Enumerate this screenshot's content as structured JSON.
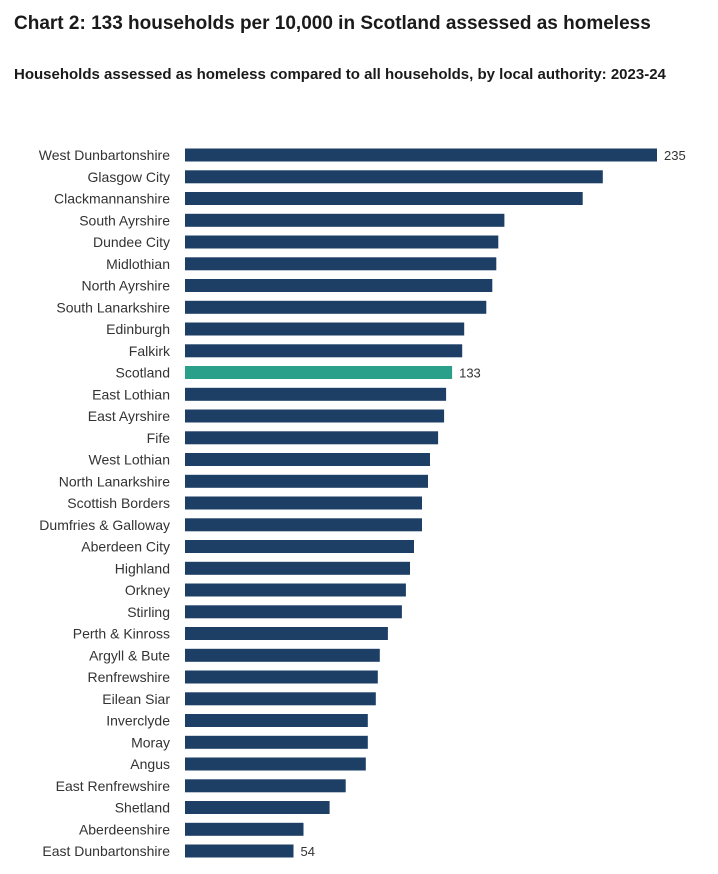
{
  "chart_data": {
    "type": "bar",
    "orientation": "horizontal",
    "title": "Chart 2: 133 households per 10,000 in Scotland assessed as homeless",
    "subtitle": "Households assessed as homeless compared to all households, by local authority: 2023-24",
    "colors": {
      "default": "#1d3f66",
      "highlight": "#2aa08a"
    },
    "highlight": "Scotland",
    "xlim": [
      0,
      235
    ],
    "categories": [
      "West Dunbartonshire",
      "Glasgow City",
      "Clackmannanshire",
      "South Ayrshire",
      "Dundee City",
      "Midlothian",
      "North Ayrshire",
      "South Lanarkshire",
      "Edinburgh",
      "Falkirk",
      "Scotland",
      "East Lothian",
      "East Ayrshire",
      "Fife",
      "West Lothian",
      "North Lanarkshire",
      "Scottish Borders",
      "Dumfries & Galloway",
      "Aberdeen City",
      "Highland",
      "Orkney",
      "Stirling",
      "Perth & Kinross",
      "Argyll & Bute",
      "Renfrewshire",
      "Eilean Siar",
      "Inverclyde",
      "Moray",
      "Angus",
      "East Renfrewshire",
      "Shetland",
      "Aberdeenshire",
      "East Dunbartonshire"
    ],
    "values": [
      235,
      208,
      198,
      159,
      156,
      155,
      153,
      150,
      139,
      138,
      133,
      130,
      129,
      126,
      122,
      121,
      118,
      118,
      114,
      112,
      110,
      108,
      101,
      97,
      96,
      95,
      91,
      91,
      90,
      80,
      72,
      59,
      54
    ],
    "data_labels": [
      {
        "category": "West Dunbartonshire",
        "text": "235"
      },
      {
        "category": "Scotland",
        "text": "133"
      },
      {
        "category": "East Dunbartonshire",
        "text": "54"
      }
    ]
  }
}
